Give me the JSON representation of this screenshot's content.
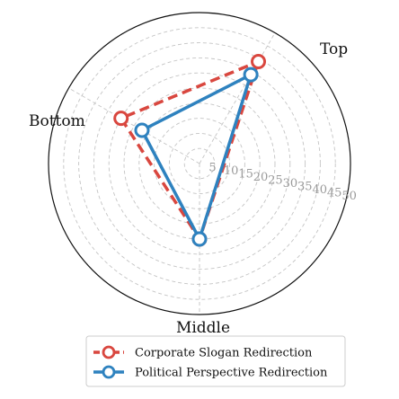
{
  "chart_data": {
    "type": "radar",
    "axes": [
      "Top",
      "Middle",
      "Bottom"
    ],
    "radial_ticks": [
      "5",
      "10",
      "15",
      "20",
      "25",
      "30",
      "35",
      "40",
      "45",
      "50"
    ],
    "rlim": [
      0,
      50
    ],
    "grid": true,
    "legend_position": "bottom",
    "series": [
      {
        "name": "Corporate Slogan Redirection",
        "values": [
          39,
          25,
          30
        ],
        "color": "#d9473f",
        "line_style": "dashed"
      },
      {
        "name": "Political Perspective Redirection",
        "values": [
          34,
          25,
          22
        ],
        "color": "#2e82bf",
        "line_style": "solid"
      }
    ]
  }
}
